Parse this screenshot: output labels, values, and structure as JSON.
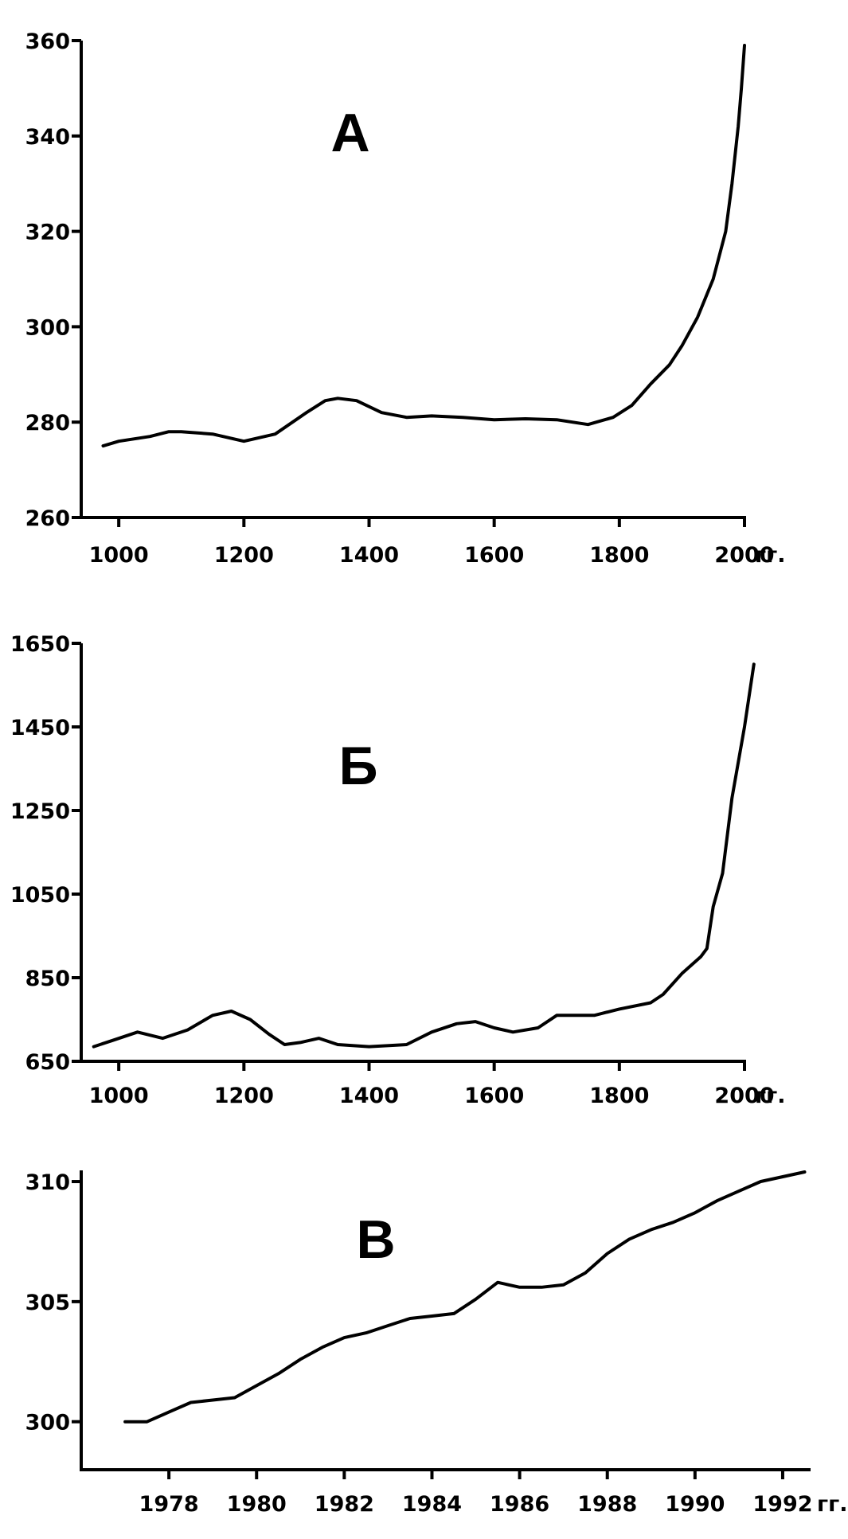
{
  "chart_data": [
    {
      "type": "line",
      "panel_label": "А",
      "xlabel": "",
      "ylabel": "",
      "x_unit": "гг.",
      "xlim": [
        940,
        2000
      ],
      "ylim": [
        260,
        360
      ],
      "x_ticks": [
        1000,
        1200,
        1400,
        1600,
        1800,
        2000
      ],
      "y_ticks": [
        260,
        280,
        300,
        320,
        340,
        360
      ],
      "grid": false,
      "series": [
        {
          "x": [
            975,
            1000,
            1050,
            1080,
            1100,
            1150,
            1200,
            1250,
            1300,
            1330,
            1350,
            1380,
            1420,
            1460,
            1500,
            1550,
            1600,
            1650,
            1700,
            1750,
            1790,
            1820,
            1850,
            1880,
            1900,
            1925,
            1950,
            1970,
            1980,
            1990,
            1995,
            2000
          ],
          "y": [
            275,
            276,
            277,
            278,
            278,
            277.5,
            276,
            277.5,
            282,
            284.5,
            285,
            284.5,
            282,
            281,
            281.3,
            281,
            280.5,
            280.7,
            280.5,
            279.5,
            281,
            283.5,
            288,
            292,
            296,
            302,
            310,
            320,
            330,
            342,
            350,
            359
          ]
        }
      ]
    },
    {
      "type": "line",
      "panel_label": "Б",
      "xlabel": "",
      "ylabel": "",
      "x_unit": "гг.",
      "xlim": [
        940,
        2000
      ],
      "ylim": [
        650,
        1650
      ],
      "x_ticks": [
        1000,
        1200,
        1400,
        1600,
        1800,
        2000
      ],
      "y_ticks": [
        650,
        850,
        1050,
        1250,
        1450,
        1650
      ],
      "grid": false,
      "series": [
        {
          "x": [
            960,
            990,
            1030,
            1070,
            1110,
            1150,
            1180,
            1210,
            1240,
            1265,
            1290,
            1320,
            1350,
            1400,
            1460,
            1500,
            1540,
            1570,
            1600,
            1630,
            1670,
            1700,
            1730,
            1760,
            1800,
            1850,
            1870,
            1900,
            1930,
            1940,
            1950,
            1965,
            1980,
            2000,
            2015
          ],
          "y": [
            685,
            700,
            720,
            705,
            725,
            760,
            770,
            750,
            715,
            690,
            695,
            705,
            690,
            685,
            690,
            720,
            740,
            745,
            730,
            720,
            730,
            760,
            760,
            760,
            775,
            790,
            810,
            860,
            900,
            920,
            1020,
            1100,
            1280,
            1450,
            1600
          ]
        }
      ]
    },
    {
      "type": "line",
      "panel_label": "В",
      "xlabel": "",
      "ylabel": "",
      "x_unit": "гг.",
      "xlim": [
        1976,
        1992.6
      ],
      "ylim": [
        298,
        310.3
      ],
      "x_ticks": [
        1978,
        1980,
        1982,
        1984,
        1986,
        1988,
        1990,
        1992
      ],
      "y_ticks": [
        300,
        305,
        310
      ],
      "grid": false,
      "series": [
        {
          "x": [
            1977,
            1977.5,
            1978,
            1978.5,
            1979,
            1979.5,
            1980,
            1980.5,
            1981,
            1981.5,
            1982,
            1982.5,
            1983,
            1983.5,
            1984,
            1984.5,
            1985,
            1985.5,
            1986,
            1986.5,
            1987,
            1987.5,
            1988,
            1988.5,
            1989,
            1989.5,
            1990,
            1990.5,
            1991,
            1991.5,
            1992,
            1992.5
          ],
          "y": [
            300,
            300,
            300.4,
            300.8,
            300.9,
            301,
            301.5,
            302,
            302.6,
            303.1,
            303.5,
            303.7,
            304,
            304.3,
            304.4,
            304.5,
            305.1,
            305.8,
            305.6,
            305.6,
            305.7,
            306.2,
            307,
            307.6,
            308,
            308.3,
            308.7,
            309.2,
            309.6,
            310,
            310.2,
            310.4
          ]
        }
      ]
    }
  ]
}
